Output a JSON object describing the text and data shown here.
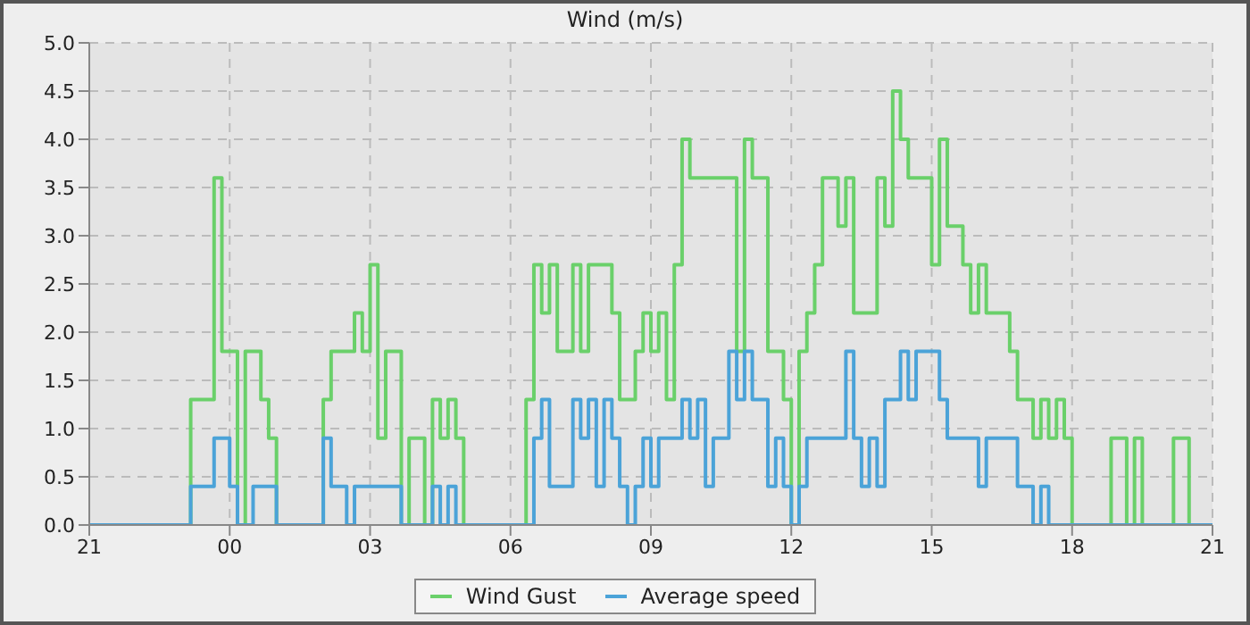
{
  "chart_data": {
    "type": "step",
    "title": "Wind (m/s)",
    "categories": [
      "21",
      null,
      null,
      null,
      null,
      null,
      null,
      null,
      null,
      null,
      null,
      null,
      null,
      null,
      null,
      null,
      null,
      null,
      "00",
      null,
      null,
      null,
      null,
      null,
      null,
      null,
      null,
      null,
      null,
      null,
      null,
      null,
      null,
      null,
      null,
      null,
      "03",
      null,
      null,
      null,
      null,
      null,
      null,
      null,
      null,
      null,
      null,
      null,
      null,
      null,
      null,
      null,
      null,
      null,
      "06",
      null,
      null,
      null,
      null,
      null,
      null,
      null,
      null,
      null,
      null,
      null,
      null,
      null,
      null,
      null,
      null,
      null,
      "09",
      null,
      null,
      null,
      null,
      null,
      null,
      null,
      null,
      null,
      null,
      null,
      null,
      null,
      null,
      null,
      null,
      null,
      "12",
      null,
      null,
      null,
      null,
      null,
      null,
      null,
      null,
      null,
      null,
      null,
      null,
      null,
      null,
      null,
      null,
      null,
      "15",
      null,
      null,
      null,
      null,
      null,
      null,
      null,
      null,
      null,
      null,
      null,
      null,
      null,
      null,
      null,
      null,
      null,
      "18",
      null,
      null,
      null,
      null,
      null,
      null,
      null,
      null,
      null,
      null,
      null,
      null,
      null,
      null,
      null,
      null,
      null,
      "21"
    ],
    "ylim": [
      0,
      5
    ],
    "yticks": [
      {
        "value": 0,
        "label": "0.0"
      },
      0.5,
      {
        "value": 1,
        "label": "1.0"
      },
      1.5,
      {
        "value": 2,
        "label": "2.0"
      },
      2.5,
      {
        "value": 3,
        "label": "3.0"
      },
      3.5,
      {
        "value": 4,
        "label": "4.0"
      },
      4.5,
      {
        "value": 5,
        "label": "5.0"
      }
    ],
    "grid": true,
    "legend": "bottom",
    "marker": "none",
    "line_style": "solid",
    "series": [
      {
        "name": "Wind Gust",
        "color": "#6ad06a",
        "values": [
          null,
          null,
          null,
          null,
          null,
          null,
          null,
          null,
          null,
          null,
          null,
          null,
          0,
          1.3,
          1.3,
          1.3,
          3.6,
          1.8,
          1.8,
          0,
          1.8,
          1.8,
          1.3,
          0.9,
          0,
          null,
          null,
          null,
          null,
          0,
          1.3,
          1.8,
          1.8,
          1.8,
          2.2,
          1.8,
          2.7,
          0.9,
          1.8,
          1.8,
          0,
          0.9,
          0.9,
          0,
          1.3,
          0.9,
          1.3,
          0.9,
          0,
          null,
          null,
          null,
          null,
          null,
          null,
          0,
          1.3,
          2.7,
          2.2,
          2.7,
          1.8,
          1.8,
          2.7,
          1.8,
          2.7,
          2.7,
          2.7,
          2.2,
          1.3,
          1.3,
          1.8,
          2.2,
          1.8,
          2.2,
          1.3,
          2.7,
          4,
          3.6,
          3.6,
          3.6,
          3.6,
          3.6,
          3.6,
          1.8,
          4,
          3.6,
          3.6,
          1.8,
          1.8,
          1.3,
          0,
          1.8,
          2.2,
          2.7,
          3.6,
          3.6,
          3.1,
          3.6,
          2.2,
          2.2,
          2.2,
          3.6,
          3.1,
          4.5,
          4,
          3.6,
          3.6,
          3.6,
          2.7,
          4,
          3.1,
          3.1,
          2.7,
          2.2,
          2.7,
          2.2,
          2.2,
          2.2,
          1.8,
          1.3,
          1.3,
          0.9,
          1.3,
          0.9,
          1.3,
          0.9,
          0,
          null,
          null,
          null,
          0,
          0.9,
          0.9,
          0,
          0.9,
          0,
          null,
          null,
          0,
          0.9,
          0.9,
          0,
          null,
          null,
          null
        ]
      },
      {
        "name": "Average speed",
        "color": "#4ba3d8",
        "values": [
          0,
          0,
          0,
          0,
          0,
          0,
          0,
          0,
          0,
          0,
          0,
          0,
          0,
          0.4,
          0.4,
          0.4,
          0.9,
          0.9,
          0.4,
          0,
          0,
          0.4,
          0.4,
          0.4,
          0,
          0,
          0,
          0,
          0,
          0,
          0.9,
          0.4,
          0.4,
          0,
          0.4,
          0.4,
          0.4,
          0.4,
          0.4,
          0.4,
          0,
          0,
          0,
          0,
          0.4,
          0,
          0.4,
          0,
          0,
          0,
          0,
          0,
          0,
          0,
          0,
          0,
          0,
          0.9,
          1.3,
          0.4,
          0.4,
          0.4,
          1.3,
          0.9,
          1.3,
          0.4,
          1.3,
          0.9,
          0.4,
          0,
          0.4,
          0.9,
          0.4,
          0.9,
          0.9,
          0.9,
          1.3,
          0.9,
          1.3,
          0.4,
          0.9,
          0.9,
          1.8,
          1.3,
          1.8,
          1.3,
          1.3,
          0.4,
          0.9,
          0.4,
          0,
          0.4,
          0.9,
          0.9,
          0.9,
          0.9,
          0.9,
          1.8,
          0.9,
          0.4,
          0.9,
          0.4,
          1.3,
          1.3,
          1.8,
          1.3,
          1.8,
          1.8,
          1.8,
          1.3,
          0.9,
          0.9,
          0.9,
          0.9,
          0.4,
          0.9,
          0.9,
          0.9,
          0.9,
          0.4,
          0.4,
          0,
          0.4,
          0,
          0,
          0,
          0,
          0,
          0,
          0,
          0,
          0,
          0,
          0,
          0,
          0,
          0,
          0,
          0,
          0,
          0,
          0,
          0,
          0,
          0
        ]
      }
    ]
  }
}
